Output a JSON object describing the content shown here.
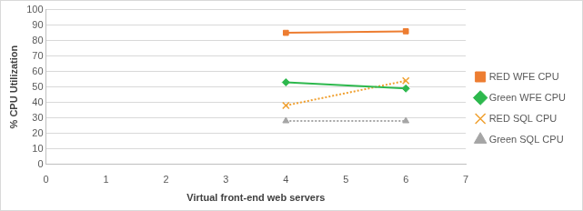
{
  "chart_data": {
    "type": "line",
    "x_label": "Virtual front-end web servers",
    "y_label": "% CPU Utilization",
    "x": [
      4,
      6
    ],
    "xlim": [
      0,
      7
    ],
    "xticks": [
      0,
      1,
      2,
      3,
      4,
      5,
      6,
      7
    ],
    "ylim": [
      0,
      100
    ],
    "yticks": [
      0,
      10,
      20,
      30,
      40,
      50,
      60,
      70,
      80,
      90,
      100
    ],
    "grid": true,
    "legend": "right",
    "series": [
      {
        "name": "RED WFE CPU",
        "color": "#ED7D31",
        "marker": "square",
        "line_style": "solid",
        "values": [
          85,
          86
        ]
      },
      {
        "name": "Green WFE CPU",
        "color": "#2DB84D",
        "marker": "diamond",
        "line_style": "solid",
        "values": [
          53,
          49
        ]
      },
      {
        "name": "RED SQL CPU",
        "color": "#F0A030",
        "marker": "x",
        "line_style": "dotted",
        "values": [
          38,
          54
        ]
      },
      {
        "name": "Green SQL CPU",
        "color": "#A5A5A5",
        "marker": "triangle",
        "line_style": "dotted",
        "values": [
          28,
          28
        ]
      }
    ]
  }
}
